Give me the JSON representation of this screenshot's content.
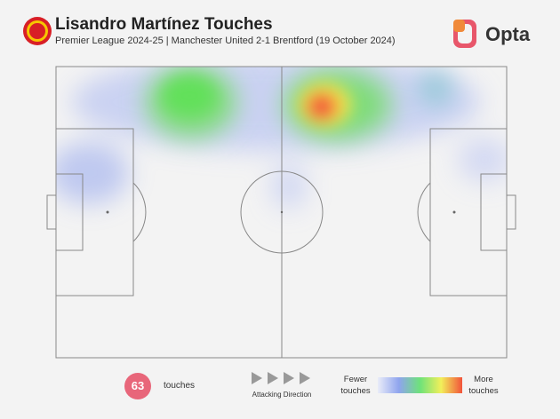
{
  "header": {
    "title": "Lisandro Martínez Touches",
    "subtitle": "Premier League 2024-25 | Manchester United 2-1 Brentford (19 October 2024)",
    "brand": "Opta"
  },
  "footer": {
    "touch_count": "63",
    "touch_label": "touches",
    "direction_label": "Attacking Direction",
    "legend_low": "Fewer touches",
    "legend_high": "More touches"
  }
}
